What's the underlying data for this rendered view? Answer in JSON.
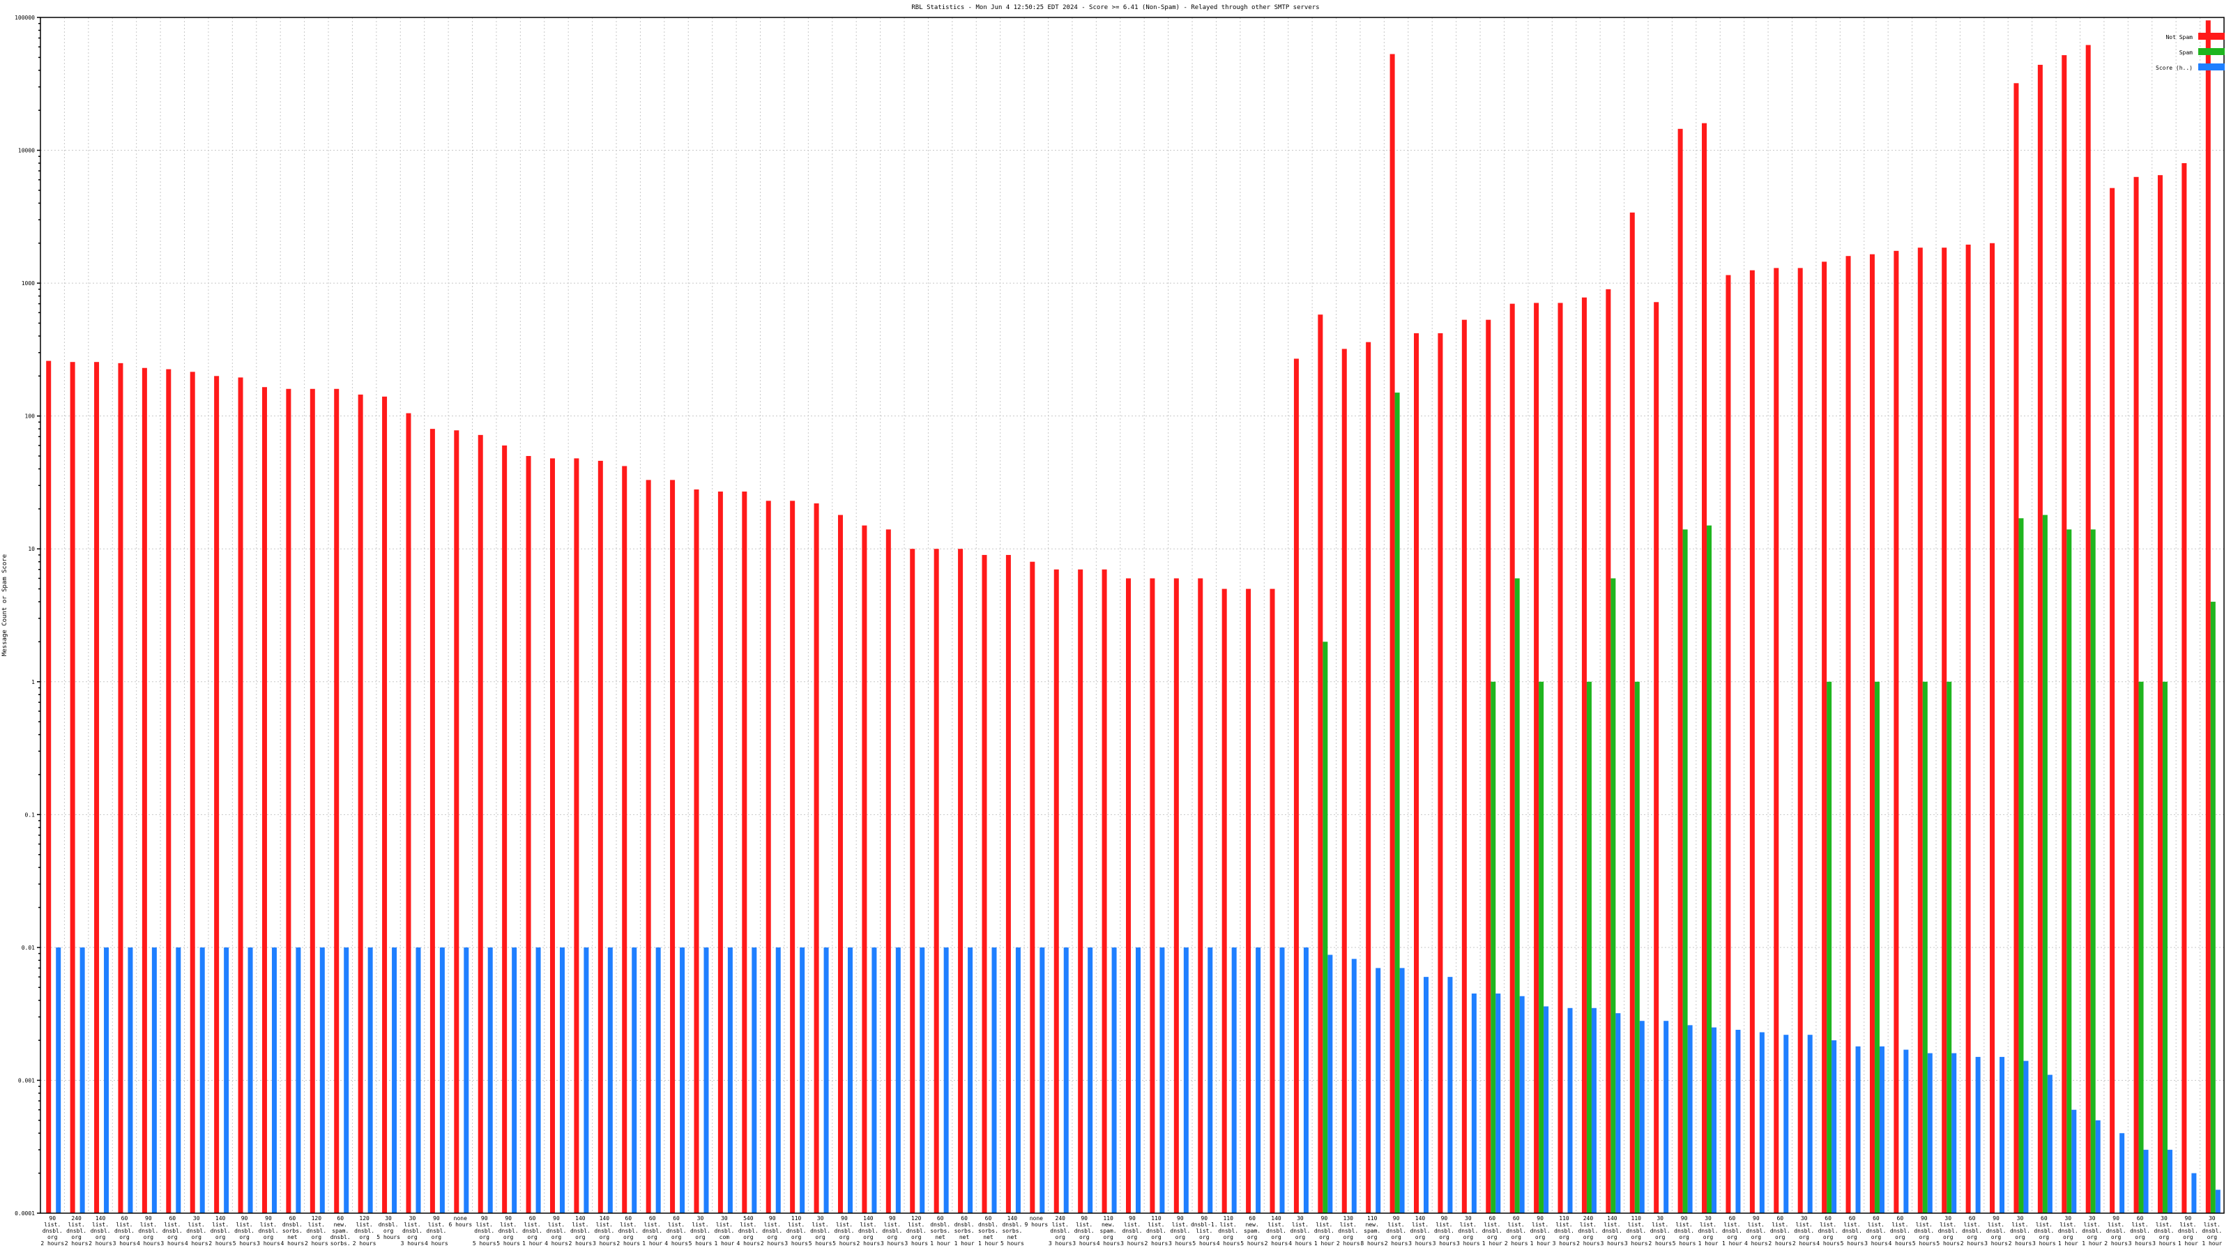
{
  "chart_data": {
    "type": "bar",
    "title": "RBL Statistics - Mon Jun  4 12:50:25 EDT 2024 - Score >= 6.41 (Non-Spam) - Relayed through other SMTP servers",
    "ylabel": "Message Count or Spam Score",
    "xlabel": "",
    "yscale": "log",
    "ylim": [
      0.0001,
      100000
    ],
    "yticks": [
      {
        "v": 0.0001,
        "label": "0.0001"
      },
      {
        "v": 0.001,
        "label": "0.001"
      },
      {
        "v": 0.01,
        "label": "0.01"
      },
      {
        "v": 0.1,
        "label": "0.1"
      },
      {
        "v": 1,
        "label": "1"
      },
      {
        "v": 10,
        "label": "10"
      },
      {
        "v": 100,
        "label": "100"
      },
      {
        "v": 1000,
        "label": "1000"
      },
      {
        "v": 10000,
        "label": "10000"
      },
      {
        "v": 100000,
        "label": "100000"
      }
    ],
    "grid": true,
    "legend_position": "top-right",
    "colors": {
      "not_spam": "#ff1a1a",
      "spam": "#1fb51f",
      "score": "#1f7fff"
    },
    "series": [
      {
        "name": "Not Spam",
        "values": [
          260,
          255,
          255,
          250,
          230,
          225,
          215,
          200,
          195,
          165,
          160,
          160,
          160,
          145,
          140,
          105,
          80,
          78,
          72,
          60,
          50,
          48,
          48,
          46,
          42,
          33,
          33,
          28,
          27,
          27,
          23,
          23,
          22,
          18,
          15,
          14,
          10,
          10,
          10,
          9,
          9,
          8,
          7,
          7,
          7,
          6,
          6,
          6,
          6,
          5,
          5,
          5,
          270,
          580,
          320,
          360,
          53000,
          420,
          420,
          530,
          530,
          700,
          710,
          710,
          780,
          900,
          3400,
          720,
          14500,
          16000,
          1150,
          1250,
          1300,
          1300,
          1450,
          1600,
          1650,
          1750,
          1850,
          1850,
          1950,
          2000,
          32000,
          44000,
          52000,
          62000,
          5200,
          6300,
          6500,
          8000,
          95000
        ]
      },
      {
        "name": "Spam",
        "values": [
          0,
          0,
          0,
          0,
          0,
          0,
          0,
          0,
          0,
          0,
          0,
          0,
          0,
          0,
          0,
          0,
          0,
          0,
          0,
          0,
          0,
          0,
          0,
          0,
          0,
          0,
          0,
          0,
          0,
          0,
          0,
          0,
          0,
          0,
          0,
          0,
          0,
          0,
          0,
          0,
          0,
          0,
          0,
          0,
          0,
          0,
          0,
          0,
          0,
          0,
          0,
          0,
          0,
          2,
          0,
          0,
          150,
          0,
          0,
          0,
          1,
          6,
          1,
          0,
          1,
          6,
          1,
          0,
          14,
          15,
          0,
          0,
          0,
          0,
          1,
          0,
          1,
          0,
          1,
          1,
          0,
          0,
          17,
          18,
          14,
          14,
          0,
          1,
          1,
          0,
          4
        ]
      },
      {
        "name": "Score (h..)",
        "values": [
          0.01,
          0.01,
          0.01,
          0.01,
          0.01,
          0.01,
          0.01,
          0.01,
          0.01,
          0.01,
          0.01,
          0.01,
          0.01,
          0.01,
          0.01,
          0.01,
          0.01,
          0.01,
          0.01,
          0.01,
          0.01,
          0.01,
          0.01,
          0.01,
          0.01,
          0.01,
          0.01,
          0.01,
          0.01,
          0.01,
          0.01,
          0.01,
          0.01,
          0.01,
          0.01,
          0.01,
          0.01,
          0.01,
          0.01,
          0.01,
          0.01,
          0.01,
          0.01,
          0.01,
          0.01,
          0.01,
          0.01,
          0.01,
          0.01,
          0.01,
          0.01,
          0.01,
          0.01,
          0.0088,
          0.0082,
          0.007,
          0.007,
          0.006,
          0.006,
          0.0045,
          0.0045,
          0.0043,
          0.0036,
          0.0035,
          0.0035,
          0.0032,
          0.0028,
          0.0028,
          0.0026,
          0.0025,
          0.0024,
          0.0023,
          0.0022,
          0.0022,
          0.002,
          0.0018,
          0.0018,
          0.0017,
          0.0016,
          0.0016,
          0.0015,
          0.0015,
          0.0014,
          0.0011,
          0.0006,
          0.0005,
          0.0004,
          0.0003,
          0.0003,
          0.0002,
          0.00015
        ]
      }
    ],
    "categories": [
      [
        "90",
        "list.",
        "dnsbl.",
        "org",
        "2 hours"
      ],
      [
        "240",
        "list.",
        "dnsbl.",
        "org",
        "2 hours"
      ],
      [
        "140",
        "list.",
        "dnsbl.",
        "org",
        "2 hours"
      ],
      [
        "60",
        "list.",
        "dnsbl.",
        "org",
        "3 hours"
      ],
      [
        "90",
        "list.",
        "dnsbl.",
        "org",
        "4 hours"
      ],
      [
        "60",
        "list.",
        "dnsbl.",
        "org",
        "3 hours"
      ],
      [
        "30",
        "list.",
        "dnsbl.",
        "org",
        "4 hours"
      ],
      [
        "140",
        "list.",
        "dnsbl.",
        "org",
        "2 hours"
      ],
      [
        "90",
        "list.",
        "dnsbl.",
        "org",
        "5 hours"
      ],
      [
        "90",
        "list.",
        "dnsbl.",
        "org",
        "3 hours"
      ],
      [
        "60",
        "dnsbl.",
        "sorbs.",
        "net",
        "4 hours"
      ],
      [
        "120",
        "list.",
        "dnsbl.",
        "org",
        "2 hours"
      ],
      [
        "60",
        "new.",
        "spam.",
        "dnsbl.",
        "sorbs."
      ],
      [
        "120",
        "list.",
        "dnsbl.",
        "org",
        "2 hours"
      ],
      [
        "30",
        "dnsbl.",
        "org",
        "5 hours"
      ],
      [
        "30",
        "list.",
        "dnsbl.",
        "org",
        "3 hours"
      ],
      [
        "90",
        "list.",
        "dnsbl.",
        "org",
        "4 hours"
      ],
      [
        "none",
        "6 hours"
      ],
      [
        "90",
        "list.",
        "dnsbl.",
        "org",
        "5 hours"
      ],
      [
        "90",
        "list.",
        "dnsbl.",
        "org",
        "5 hours"
      ],
      [
        "60",
        "list.",
        "dnsbl.",
        "org",
        "1 hour"
      ],
      [
        "90",
        "list.",
        "dnsbl.",
        "org",
        "4 hours"
      ],
      [
        "140",
        "list.",
        "dnsbl.",
        "org",
        "2 hours"
      ],
      [
        "140",
        "list.",
        "dnsbl.",
        "org",
        "3 hours"
      ],
      [
        "60",
        "list.",
        "dnsbl.",
        "org",
        "2 hours"
      ],
      [
        "60",
        "list.",
        "dnsbl.",
        "org",
        "1 hour"
      ],
      [
        "60",
        "list.",
        "dnsbl.",
        "org",
        "4 hours"
      ],
      [
        "30",
        "list.",
        "dnsbl.",
        "org",
        "5 hours"
      ],
      [
        "30",
        "list.",
        "dnsbl.",
        "com",
        "1 hour"
      ],
      [
        "540",
        "list.",
        "dnsbl.",
        "org",
        "4 hours"
      ],
      [
        "90",
        "list.",
        "dnsbl.",
        "org",
        "2 hours"
      ],
      [
        "110",
        "list.",
        "dnsbl.",
        "org",
        "3 hours"
      ],
      [
        "30",
        "list.",
        "dnsbl.",
        "org",
        "5 hours"
      ],
      [
        "90",
        "list.",
        "dnsbl.",
        "org",
        "5 hours"
      ],
      [
        "140",
        "list.",
        "dnsbl.",
        "org",
        "2 hours"
      ],
      [
        "90",
        "list.",
        "dnsbl.",
        "org",
        "3 hours"
      ],
      [
        "120",
        "list.",
        "dnsbl.",
        "org",
        "3 hours"
      ],
      [
        "60",
        "dnsbl.",
        "sorbs.",
        "net",
        "1 hour"
      ],
      [
        "60",
        "dnsbl.",
        "sorbs.",
        "net",
        "1 hour"
      ],
      [
        "60",
        "dnsbl.",
        "sorbs.",
        "net",
        "1 hour"
      ],
      [
        "140",
        "dnsbl.",
        "sorbs.",
        "net",
        "5 hours"
      ],
      [
        "none",
        "9 hours"
      ],
      [
        "240",
        "list.",
        "dnsbl.",
        "org",
        "3 hours"
      ],
      [
        "90",
        "list.",
        "dnsbl.",
        "org",
        "3 hours"
      ],
      [
        "110",
        "new.",
        "spam.",
        "org",
        "4 hours"
      ],
      [
        "90",
        "list.",
        "dnsbl.",
        "org",
        "3 hours"
      ],
      [
        "110",
        "list.",
        "dnsbl.",
        "org",
        "2 hours"
      ],
      [
        "90",
        "list.",
        "dnsbl.",
        "org",
        "3 hours"
      ],
      [
        "90",
        "dnsbl-1.",
        "list.",
        "org",
        "5 hours"
      ],
      [
        "110",
        "list.",
        "dnsbl.",
        "org",
        "4 hours"
      ],
      [
        "60",
        "new.",
        "spam.",
        "org",
        "5 hours"
      ],
      [
        "140",
        "list.",
        "dnsbl.",
        "org",
        "2 hours"
      ],
      [
        "30",
        "list.",
        "dnsbl.",
        "org",
        "4 hours"
      ],
      [
        "90",
        "list.",
        "dnsbl.",
        "org",
        "1 hour"
      ],
      [
        "130",
        "list.",
        "dnsbl.",
        "org",
        "2 hours"
      ],
      [
        "110",
        "new.",
        "spam.",
        "org",
        "8 hours"
      ],
      [
        "90",
        "list.",
        "dnsbl.",
        "org",
        "2 hours"
      ],
      [
        "140",
        "list.",
        "dnsbl.",
        "org",
        "3 hours"
      ],
      [
        "90",
        "list.",
        "dnsbl.",
        "org",
        "3 hours"
      ],
      [
        "30",
        "list.",
        "dnsbl.",
        "org",
        "3 hours"
      ],
      [
        "60",
        "list.",
        "dnsbl.",
        "org",
        "1 hour"
      ],
      [
        "60",
        "list.",
        "dnsbl.",
        "org",
        "2 hours"
      ],
      [
        "90",
        "list.",
        "dnsbl.",
        "org",
        "1 hour"
      ],
      [
        "110",
        "list.",
        "dnsbl.",
        "org",
        "3 hours"
      ],
      [
        "240",
        "list.",
        "dnsbl.",
        "org",
        "2 hours"
      ],
      [
        "140",
        "list.",
        "dnsbl.",
        "org",
        "3 hours"
      ],
      [
        "110",
        "list.",
        "dnsbl.",
        "org",
        "3 hours"
      ],
      [
        "30",
        "list.",
        "dnsbl.",
        "org",
        "2 hours"
      ],
      [
        "90",
        "list.",
        "dnsbl.",
        "org",
        "5 hours"
      ],
      [
        "30",
        "list.",
        "dnsbl.",
        "org",
        "1 hour"
      ],
      [
        "60",
        "list.",
        "dnsbl.",
        "org",
        "1 hour"
      ],
      [
        "90",
        "list.",
        "dnsbl.",
        "org",
        "4 hours"
      ],
      [
        "60",
        "list.",
        "dnsbl.",
        "org",
        "2 hours"
      ],
      [
        "30",
        "list.",
        "dnsbl.",
        "org",
        "2 hours"
      ],
      [
        "60",
        "list.",
        "dnsbl.",
        "org",
        "4 hours"
      ],
      [
        "60",
        "list.",
        "dnsbl.",
        "org",
        "5 hours"
      ],
      [
        "60",
        "list.",
        "dnsbl.",
        "org",
        "3 hours"
      ],
      [
        "60",
        "list.",
        "dnsbl.",
        "org",
        "4 hours"
      ],
      [
        "90",
        "list.",
        "dnsbl.",
        "org",
        "5 hours"
      ],
      [
        "30",
        "list.",
        "dnsbl.",
        "org",
        "5 hours"
      ],
      [
        "60",
        "list.",
        "dnsbl.",
        "org",
        "2 hours"
      ],
      [
        "90",
        "list.",
        "dnsbl.",
        "org",
        "3 hours"
      ],
      [
        "30",
        "list.",
        "dnsbl.",
        "org",
        "2 hours"
      ],
      [
        "60",
        "list.",
        "dnsbl.",
        "org",
        "3 hours"
      ],
      [
        "30",
        "list.",
        "dnsbl.",
        "org",
        "1 hour"
      ],
      [
        "30",
        "list.",
        "dnsbl.",
        "org",
        "1 hour"
      ],
      [
        "90",
        "list.",
        "dnsbl.",
        "org",
        "2 hours"
      ],
      [
        "60",
        "list.",
        "dnsbl.",
        "org",
        "3 hours"
      ],
      [
        "30",
        "list.",
        "dnsbl.",
        "org",
        "3 hours"
      ],
      [
        "90",
        "list.",
        "dnsbl.",
        "org",
        "1 hour"
      ],
      [
        "30",
        "list.",
        "dnsbl.",
        "org",
        "1 hour"
      ]
    ]
  }
}
